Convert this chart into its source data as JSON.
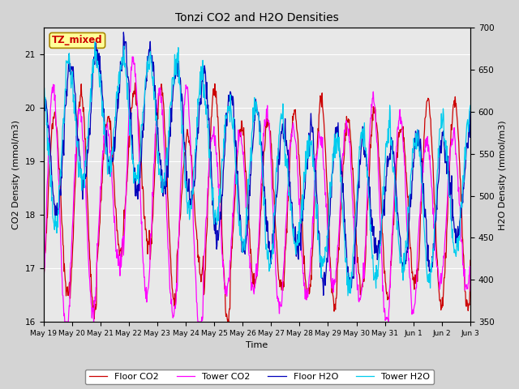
{
  "title": "Tonzi CO2 and H2O Densities",
  "xlabel": "Time",
  "ylabel_left": "CO2 Density (mmol/m3)",
  "ylabel_right": "H2O Density (mmol/m3)",
  "co2_ylim": [
    16.0,
    21.5
  ],
  "h2o_ylim": [
    350,
    700
  ],
  "annotation_text": "TZ_mixed",
  "annotation_color": "#cc0000",
  "annotation_bg": "#ffff99",
  "annotation_border": "#aa8800",
  "fig_facecolor": "#d4d4d4",
  "plot_facecolor": "#e8e8e8",
  "grid_color": "white",
  "line_colors": {
    "floor_co2": "#cc0000",
    "tower_co2": "#ff00ff",
    "floor_h2o": "#0000bb",
    "tower_h2o": "#00ccee"
  },
  "legend_labels": [
    "Floor CO2",
    "Tower CO2",
    "Floor H2O",
    "Tower H2O"
  ],
  "xtick_labels": [
    "May 19",
    "May 20",
    "May 21",
    "May 22",
    "May 23",
    "May 24",
    "May 25",
    "May 26",
    "May 27",
    "May 28",
    "May 29",
    "May 30",
    "May 31",
    "Jun 1",
    "Jun 2",
    "Jun 3"
  ],
  "days": 16,
  "n_points": 960,
  "seed": 42
}
